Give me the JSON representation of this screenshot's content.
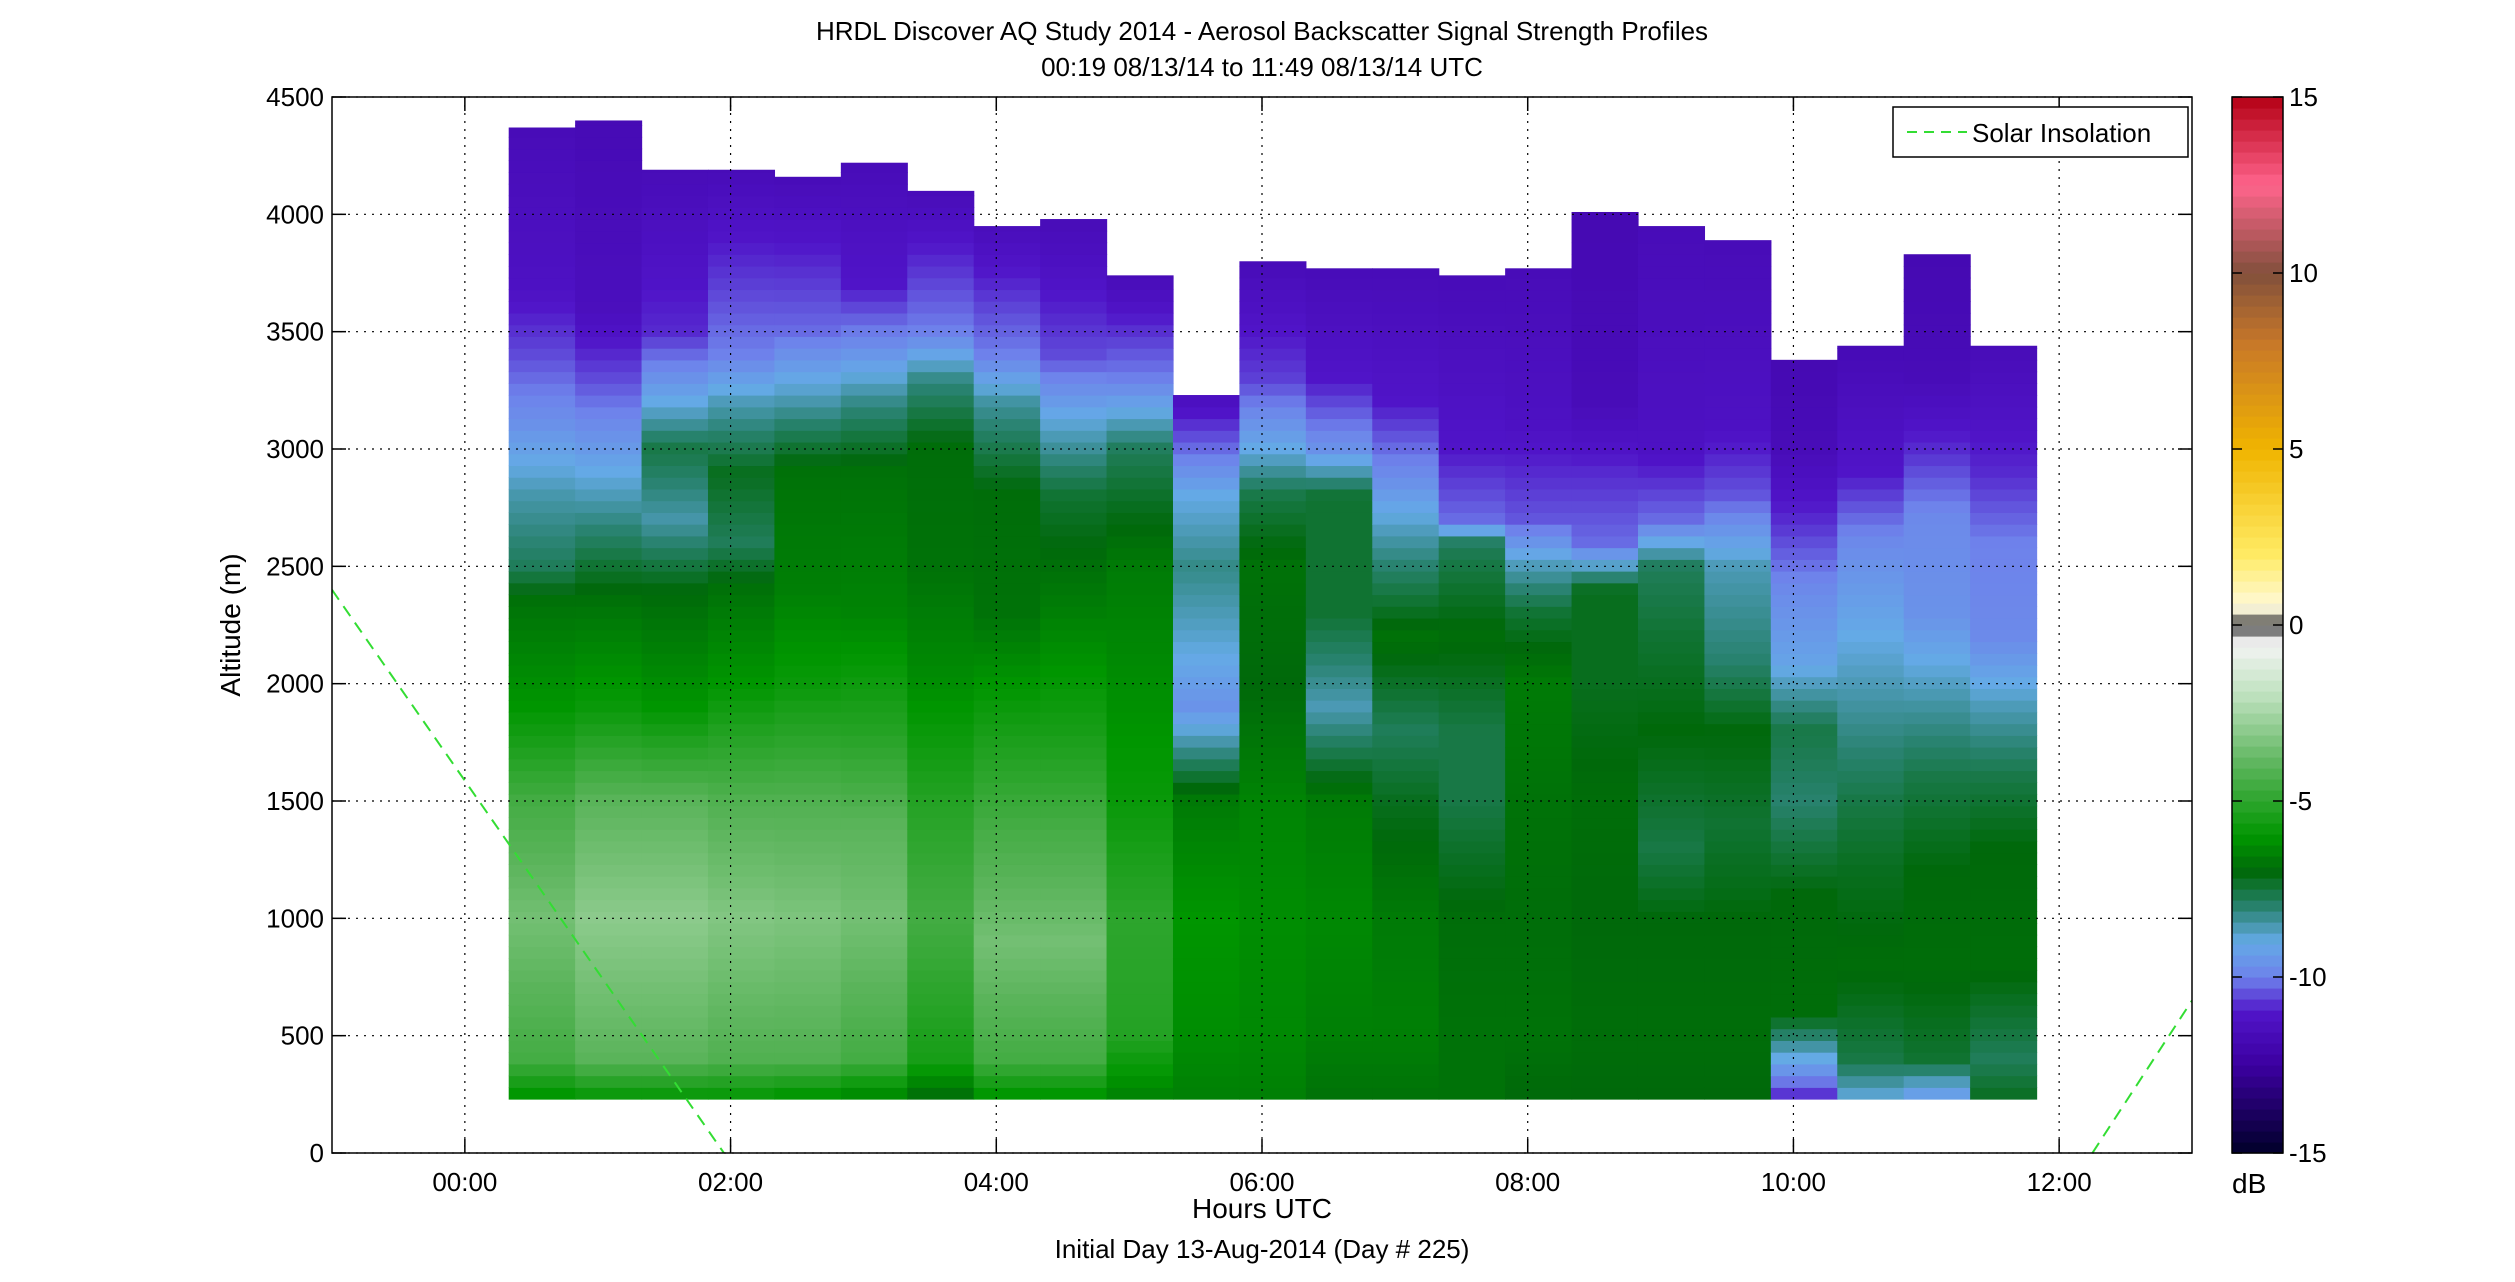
{
  "chart_data": {
    "type": "heatmap",
    "title": "HRDL Discover AQ Study 2014 - Aerosol Backscatter Signal Strength Profiles",
    "subtitle": "00:19 08/13/14 to 11:49 08/13/14  UTC",
    "xlabel": "Hours UTC",
    "xlabel2": "Initial Day 13-Aug-2014 (Day # 225)",
    "ylabel": "Altitude (m)",
    "xlim": [
      -1.0,
      13.0
    ],
    "ylim": [
      0,
      4500
    ],
    "x_ticks": [
      0,
      2,
      4,
      6,
      8,
      10,
      12
    ],
    "x_tick_labels": [
      "00:00",
      "02:00",
      "04:00",
      "06:00",
      "08:00",
      "10:00",
      "12:00"
    ],
    "y_ticks": [
      0,
      500,
      1000,
      1500,
      2000,
      2500,
      3000,
      3500,
      4000,
      4500
    ],
    "y_tick_labels": [
      "0",
      "500",
      "1000",
      "1500",
      "2000",
      "2500",
      "3000",
      "3500",
      "4000",
      "4500"
    ],
    "grid": true,
    "colorbar": {
      "unit_label": "dB",
      "range": [
        -15,
        15
      ],
      "ticks": [
        -15,
        -10,
        -5,
        0,
        5,
        10,
        15
      ],
      "tick_labels": [
        "-15",
        "-10",
        "-5",
        "0",
        "5",
        "10",
        "15"
      ]
    },
    "legend": {
      "placement": "top-right",
      "entries": [
        "Solar Insolation"
      ]
    },
    "solar_insolation_color": "#33dd33",
    "solar_insolation_segments": [
      [
        [
          -1.0,
          2400
        ],
        [
          1.95,
          0
        ]
      ],
      [
        [
          12.25,
          0
        ],
        [
          13.0,
          650
        ]
      ]
    ],
    "profile_bottom_m": 230,
    "profiles": [
      {
        "t": [
          0.33,
          0.83
        ],
        "top": 4370,
        "p": [
          [
            230,
            -6.2
          ],
          [
            400,
            -4.5
          ],
          [
            1000,
            -3.5
          ],
          [
            1500,
            -4.5
          ],
          [
            1900,
            -6.0
          ],
          [
            2350,
            -6.8
          ],
          [
            2500,
            -7.8
          ],
          [
            2800,
            -8.5
          ],
          [
            3100,
            -9.6
          ],
          [
            3400,
            -10.5
          ],
          [
            3700,
            -11.2
          ],
          [
            4370,
            -11.6
          ]
        ]
      },
      {
        "t": [
          0.83,
          1.33
        ],
        "top": 4400,
        "p": [
          [
            230,
            -6.0
          ],
          [
            400,
            -4.0
          ],
          [
            1000,
            -3.0
          ],
          [
            1500,
            -4.0
          ],
          [
            1900,
            -5.8
          ],
          [
            2350,
            -6.8
          ],
          [
            2650,
            -8.0
          ],
          [
            3000,
            -9.4
          ],
          [
            3300,
            -10.5
          ],
          [
            3600,
            -11.4
          ],
          [
            4400,
            -11.7
          ]
        ]
      },
      {
        "t": [
          1.33,
          1.83
        ],
        "top": 4190,
        "p": [
          [
            230,
            -6.0
          ],
          [
            400,
            -4.0
          ],
          [
            1000,
            -3.0
          ],
          [
            1500,
            -4.0
          ],
          [
            1900,
            -6.0
          ],
          [
            2400,
            -7.0
          ],
          [
            2700,
            -8.5
          ],
          [
            3000,
            -7.6
          ],
          [
            3200,
            -9.0
          ],
          [
            3500,
            -10.8
          ],
          [
            4190,
            -11.6
          ]
        ]
      },
      {
        "t": [
          1.83,
          2.33
        ],
        "top": 4190,
        "p": [
          [
            230,
            -6.0
          ],
          [
            400,
            -4.2
          ],
          [
            1000,
            -3.2
          ],
          [
            1500,
            -4.2
          ],
          [
            2000,
            -6.0
          ],
          [
            2400,
            -6.8
          ],
          [
            2600,
            -7.8
          ],
          [
            2900,
            -7.2
          ],
          [
            3200,
            -8.6
          ],
          [
            3400,
            -10.0
          ],
          [
            4190,
            -11.6
          ]
        ]
      },
      {
        "t": [
          2.33,
          2.83
        ],
        "top": 4160,
        "p": [
          [
            230,
            -6.2
          ],
          [
            400,
            -4.2
          ],
          [
            1000,
            -3.3
          ],
          [
            1500,
            -4.2
          ],
          [
            2000,
            -5.8
          ],
          [
            2400,
            -6.5
          ],
          [
            2900,
            -6.8
          ],
          [
            3200,
            -8.5
          ],
          [
            3500,
            -10.2
          ],
          [
            4160,
            -11.6
          ]
        ]
      },
      {
        "t": [
          2.83,
          3.33
        ],
        "top": 4220,
        "p": [
          [
            230,
            -6.5
          ],
          [
            400,
            -4.5
          ],
          [
            1000,
            -3.5
          ],
          [
            1400,
            -4.0
          ],
          [
            1800,
            -5.2
          ],
          [
            2300,
            -6.4
          ],
          [
            2900,
            -6.8
          ],
          [
            3200,
            -8.2
          ],
          [
            3450,
            -9.8
          ],
          [
            3700,
            -11.0
          ],
          [
            4220,
            -11.6
          ]
        ]
      },
      {
        "t": [
          3.33,
          3.83
        ],
        "top": 4100,
        "p": [
          [
            230,
            -7.0
          ],
          [
            400,
            -5.5
          ],
          [
            1000,
            -4.5
          ],
          [
            1500,
            -5.2
          ],
          [
            2000,
            -6.2
          ],
          [
            2500,
            -6.8
          ],
          [
            3000,
            -6.9
          ],
          [
            3300,
            -8.2
          ],
          [
            3500,
            -10.0
          ],
          [
            4100,
            -11.6
          ]
        ]
      },
      {
        "t": [
          3.83,
          4.33
        ],
        "top": 3950,
        "p": [
          [
            230,
            -6.2
          ],
          [
            400,
            -4.5
          ],
          [
            900,
            -3.5
          ],
          [
            1400,
            -4.5
          ],
          [
            1800,
            -5.5
          ],
          [
            2300,
            -6.8
          ],
          [
            2800,
            -6.9
          ],
          [
            3200,
            -8.4
          ],
          [
            3400,
            -10.0
          ],
          [
            3950,
            -11.5
          ]
        ]
      },
      {
        "t": [
          4.33,
          4.83
        ],
        "top": 3980,
        "p": [
          [
            230,
            -6.2
          ],
          [
            400,
            -4.5
          ],
          [
            900,
            -3.5
          ],
          [
            1400,
            -4.5
          ],
          [
            1800,
            -5.5
          ],
          [
            2300,
            -6.5
          ],
          [
            2800,
            -7.4
          ],
          [
            3100,
            -8.8
          ],
          [
            3400,
            -10.5
          ],
          [
            3980,
            -11.6
          ]
        ]
      },
      {
        "t": [
          4.83,
          5.33
        ],
        "top": 3740,
        "p": [
          [
            230,
            -6.5
          ],
          [
            500,
            -5.2
          ],
          [
            1000,
            -5.0
          ],
          [
            1500,
            -5.8
          ],
          [
            2000,
            -6.2
          ],
          [
            2500,
            -6.6
          ],
          [
            3000,
            -7.8
          ],
          [
            3300,
            -10.0
          ],
          [
            3740,
            -11.6
          ]
        ]
      },
      {
        "t": [
          5.33,
          5.83
        ],
        "top": 3230,
        "p": [
          [
            230,
            -6.5
          ],
          [
            500,
            -6.2
          ],
          [
            1000,
            -6.0
          ],
          [
            1500,
            -6.6
          ],
          [
            1900,
            -9.6
          ],
          [
            2200,
            -8.8
          ],
          [
            2500,
            -8.2
          ],
          [
            2800,
            -9.0
          ],
          [
            3000,
            -10.2
          ],
          [
            3230,
            -11.4
          ]
        ]
      },
      {
        "t": [
          5.83,
          6.33
        ],
        "top": 3800,
        "p": [
          [
            230,
            -6.5
          ],
          [
            500,
            -6.3
          ],
          [
            1000,
            -6.2
          ],
          [
            1500,
            -6.4
          ],
          [
            2000,
            -7.0
          ],
          [
            2500,
            -6.8
          ],
          [
            2800,
            -7.6
          ],
          [
            3000,
            -9.0
          ],
          [
            3300,
            -10.6
          ],
          [
            3800,
            -11.6
          ]
        ]
      },
      {
        "t": [
          6.33,
          6.83
        ],
        "top": 3770,
        "p": [
          [
            230,
            -6.8
          ],
          [
            500,
            -6.5
          ],
          [
            1000,
            -6.3
          ],
          [
            1500,
            -6.6
          ],
          [
            1900,
            -8.6
          ],
          [
            2300,
            -7.4
          ],
          [
            2800,
            -7.4
          ],
          [
            3000,
            -9.6
          ],
          [
            3300,
            -11.0
          ],
          [
            3770,
            -11.6
          ]
        ]
      },
      {
        "t": [
          6.83,
          7.33
        ],
        "top": 3770,
        "p": [
          [
            230,
            -6.8
          ],
          [
            500,
            -6.5
          ],
          [
            1000,
            -6.6
          ],
          [
            1500,
            -7.2
          ],
          [
            1800,
            -7.8
          ],
          [
            2200,
            -6.8
          ],
          [
            2600,
            -8.4
          ],
          [
            2900,
            -9.8
          ],
          [
            3200,
            -11.0
          ],
          [
            3770,
            -11.6
          ]
        ]
      },
      {
        "t": [
          7.33,
          7.83
        ],
        "top": 3740,
        "p": [
          [
            230,
            -6.8
          ],
          [
            500,
            -6.8
          ],
          [
            1000,
            -6.9
          ],
          [
            1500,
            -7.6
          ],
          [
            1800,
            -7.6
          ],
          [
            2200,
            -6.9
          ],
          [
            2600,
            -7.8
          ],
          [
            2700,
            -10.2
          ],
          [
            3000,
            -11.0
          ],
          [
            3740,
            -11.6
          ]
        ]
      },
      {
        "t": [
          7.83,
          8.33
        ],
        "top": 3770,
        "p": [
          [
            230,
            -7.0
          ],
          [
            500,
            -6.8
          ],
          [
            1000,
            -6.9
          ],
          [
            1500,
            -6.8
          ],
          [
            2000,
            -6.6
          ],
          [
            2300,
            -7.4
          ],
          [
            2500,
            -8.6
          ],
          [
            2700,
            -10.4
          ],
          [
            3100,
            -11.2
          ],
          [
            3770,
            -11.6
          ]
        ]
      },
      {
        "t": [
          8.33,
          8.83
        ],
        "top": 4010,
        "p": [
          [
            230,
            -7.0
          ],
          [
            500,
            -6.9
          ],
          [
            1000,
            -7.0
          ],
          [
            1500,
            -6.9
          ],
          [
            2000,
            -7.2
          ],
          [
            2400,
            -7.2
          ],
          [
            2600,
            -10.2
          ],
          [
            2900,
            -10.8
          ],
          [
            3200,
            -11.6
          ],
          [
            4010,
            -11.8
          ]
        ]
      },
      {
        "t": [
          8.83,
          9.33
        ],
        "top": 3950,
        "p": [
          [
            230,
            -7.0
          ],
          [
            500,
            -6.9
          ],
          [
            1000,
            -7.0
          ],
          [
            1300,
            -7.6
          ],
          [
            1800,
            -7.0
          ],
          [
            2200,
            -7.4
          ],
          [
            2500,
            -7.8
          ],
          [
            2700,
            -10.2
          ],
          [
            3000,
            -11.2
          ],
          [
            3950,
            -11.6
          ]
        ]
      },
      {
        "t": [
          9.33,
          9.83
        ],
        "top": 3890,
        "p": [
          [
            230,
            -7.0
          ],
          [
            500,
            -6.9
          ],
          [
            1000,
            -7.0
          ],
          [
            1400,
            -7.4
          ],
          [
            1800,
            -7.0
          ],
          [
            2100,
            -8.0
          ],
          [
            2500,
            -8.6
          ],
          [
            2800,
            -10.4
          ],
          [
            3100,
            -11.2
          ],
          [
            3890,
            -11.6
          ]
        ]
      },
      {
        "t": [
          9.83,
          10.33
        ],
        "top": 3380,
        "p": [
          [
            230,
            -11.0
          ],
          [
            330,
            -9.8
          ],
          [
            600,
            -6.9
          ],
          [
            1100,
            -7.0
          ],
          [
            1500,
            -8.0
          ],
          [
            1800,
            -7.6
          ],
          [
            2100,
            -9.2
          ],
          [
            2400,
            -9.8
          ],
          [
            2700,
            -10.8
          ],
          [
            3000,
            -11.6
          ],
          [
            3380,
            -11.8
          ]
        ]
      },
      {
        "t": [
          10.33,
          10.83
        ],
        "top": 3440,
        "p": [
          [
            230,
            -9.0
          ],
          [
            400,
            -7.6
          ],
          [
            800,
            -6.9
          ],
          [
            1200,
            -7.2
          ],
          [
            1500,
            -7.6
          ],
          [
            1800,
            -8.2
          ],
          [
            2200,
            -9.0
          ],
          [
            2600,
            -9.8
          ],
          [
            2900,
            -11.0
          ],
          [
            3440,
            -11.7
          ]
        ]
      },
      {
        "t": [
          10.83,
          11.33
        ],
        "top": 3830,
        "p": [
          [
            230,
            -9.6
          ],
          [
            400,
            -7.4
          ],
          [
            800,
            -6.9
          ],
          [
            1200,
            -7.0
          ],
          [
            1600,
            -7.6
          ],
          [
            1900,
            -8.4
          ],
          [
            2300,
            -9.6
          ],
          [
            2700,
            -9.8
          ],
          [
            3000,
            -10.8
          ],
          [
            3300,
            -11.6
          ],
          [
            3830,
            -11.8
          ]
        ]
      },
      {
        "t": [
          11.33,
          11.83
        ],
        "top": 3440,
        "p": [
          [
            230,
            -7.2
          ],
          [
            400,
            -7.8
          ],
          [
            800,
            -6.9
          ],
          [
            1300,
            -7.0
          ],
          [
            1600,
            -7.6
          ],
          [
            1900,
            -8.6
          ],
          [
            2200,
            -9.8
          ],
          [
            2600,
            -10.0
          ],
          [
            2900,
            -10.8
          ],
          [
            3440,
            -11.6
          ]
        ]
      }
    ]
  }
}
